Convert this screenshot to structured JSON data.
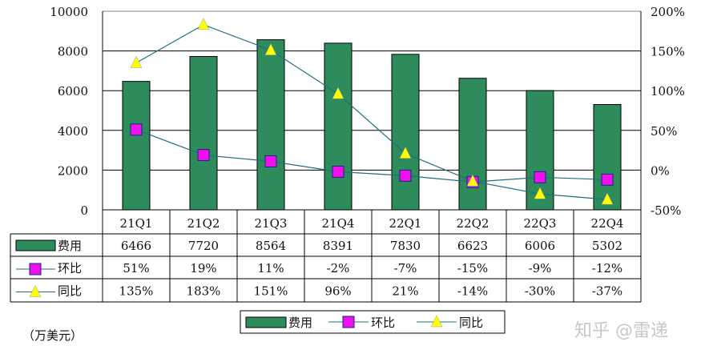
{
  "chart_data": {
    "type": "bar+line",
    "categories": [
      "21Q1",
      "21Q2",
      "21Q3",
      "21Q4",
      "22Q1",
      "22Q2",
      "22Q3",
      "22Q4"
    ],
    "series": [
      {
        "name": "费用",
        "type": "bar",
        "axis": "left",
        "values": [
          6466,
          7720,
          8564,
          8391,
          7830,
          6623,
          6006,
          5302
        ],
        "labels": [
          "6466",
          "7720",
          "8564",
          "8391",
          "7830",
          "6623",
          "6006",
          "5302"
        ],
        "color": "#2e8b5c"
      },
      {
        "name": "环比",
        "type": "line",
        "axis": "right",
        "values": [
          51,
          19,
          11,
          -2,
          -7,
          -15,
          -9,
          -12
        ],
        "labels": [
          "51%",
          "19%",
          "11%",
          "-2%",
          "-7%",
          "-15%",
          "-9%",
          "-12%"
        ],
        "color": "#ee10ee",
        "marker": "square"
      },
      {
        "name": "同比",
        "type": "line",
        "axis": "right",
        "values": [
          135,
          183,
          151,
          96,
          21,
          -14,
          -30,
          -37
        ],
        "labels": [
          "135%",
          "183%",
          "151%",
          "96%",
          "21%",
          "-14%",
          "-30%",
          "-37%"
        ],
        "color": "#ffff00",
        "marker": "triangle"
      }
    ],
    "left_axis": {
      "ylim": [
        0,
        10000
      ],
      "ticks": [
        "0",
        "2000",
        "4000",
        "6000",
        "8000",
        "10000"
      ]
    },
    "right_axis": {
      "ylim": [
        -50,
        200
      ],
      "ticks": [
        "-50%",
        "0%",
        "50%",
        "100%",
        "150%",
        "200%"
      ]
    },
    "unit_label": "（万美元）",
    "line_color": "#1f6f7a",
    "grid": true,
    "legend_placement": "bottom",
    "data_table": true
  },
  "watermark": "知乎 @雷递"
}
